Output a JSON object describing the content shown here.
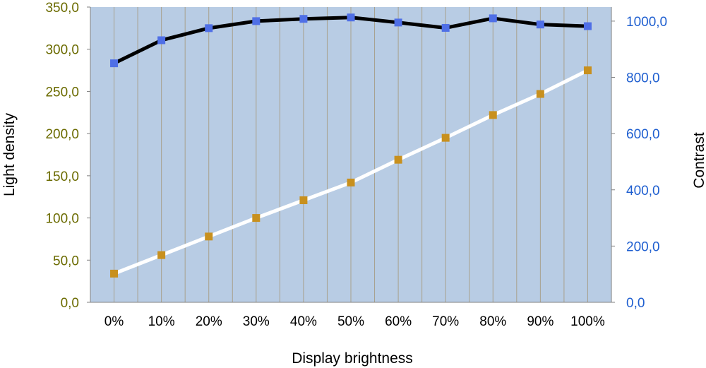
{
  "chart_data": {
    "type": "line",
    "xlabel": "Display brightness",
    "ylabel": "Light density",
    "y2label": "Contrast",
    "categories": [
      "0%",
      "10%",
      "20%",
      "30%",
      "40%",
      "50%",
      "60%",
      "70%",
      "80%",
      "90%",
      "100%"
    ],
    "ylim": [
      0,
      350
    ],
    "y2lim": [
      0,
      1050
    ],
    "yticks": [
      "0,0",
      "50,0",
      "100,0",
      "150,0",
      "200,0",
      "250,0",
      "300,0",
      "350,0"
    ],
    "y2ticks": [
      "0,0",
      "200,0",
      "400,0",
      "600,0",
      "800,0",
      "1000,0"
    ],
    "grid": "vertical",
    "series": [
      {
        "axis": "left",
        "line_color": "#ffffff",
        "marker_color": "#c8901e",
        "values": [
          34,
          56,
          78,
          100,
          121,
          142,
          169,
          195,
          222,
          247,
          275
        ]
      },
      {
        "axis": "right",
        "line_color": "#000000",
        "marker_color": "#4f6fe6",
        "values": [
          850,
          932,
          975,
          1000,
          1008,
          1013,
          995,
          976,
          1010,
          988,
          982
        ]
      }
    ],
    "colors": {
      "plot_background": "#b8cce4",
      "grid": "#a8a08c",
      "left_axis_text": "#6b6b00",
      "right_axis_text": "#1f5fd0"
    }
  }
}
